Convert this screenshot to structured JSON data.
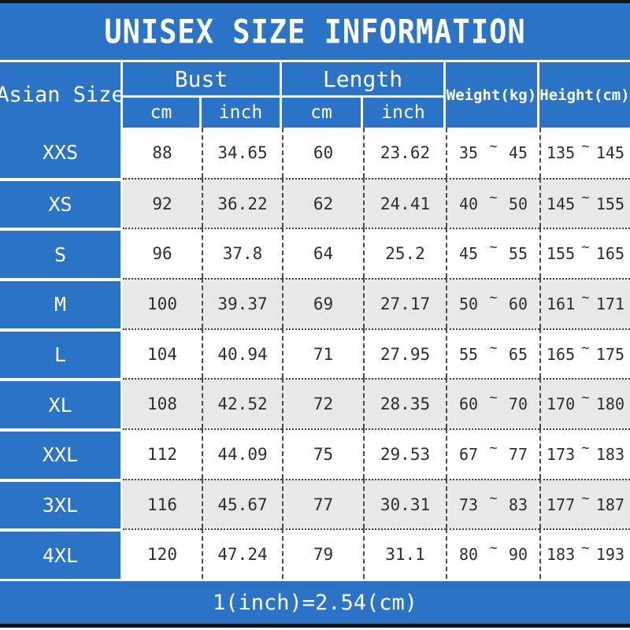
{
  "title": "UNISEX SIZE INFORMATION",
  "symbols": {
    "tilde": "~"
  },
  "colors": {
    "primary_blue": "#2b73c6",
    "alt_row_gray": "#e8e8e8",
    "border_black": "#141414",
    "body_text": "#2e2e2e"
  },
  "header": {
    "asian_size": "Asian Size",
    "bust": "Bust",
    "length": "Length",
    "weight": "Weight(kg)",
    "height": "Height(cm)",
    "unit_cm": "cm",
    "unit_inch": "inch"
  },
  "footer": {
    "note": "1(inch)=2.54(cm)"
  },
  "chart_data": {
    "type": "table",
    "title": "UNISEX SIZE INFORMATION",
    "columns": [
      "Asian Size",
      "Bust cm",
      "Bust inch",
      "Length cm",
      "Length inch",
      "Weight(kg)",
      "Height(cm)"
    ],
    "note": "1(inch)=2.54(cm)",
    "rows": [
      {
        "size": "XXS",
        "bust_cm": "88",
        "bust_inch": "34.65",
        "length_cm": "60",
        "length_inch": "23.62",
        "weight_min": "35",
        "weight_max": "45",
        "height_min": "135",
        "height_max": "145"
      },
      {
        "size": "XS",
        "bust_cm": "92",
        "bust_inch": "36.22",
        "length_cm": "62",
        "length_inch": "24.41",
        "weight_min": "40",
        "weight_max": "50",
        "height_min": "145",
        "height_max": "155"
      },
      {
        "size": "S",
        "bust_cm": "96",
        "bust_inch": "37.8",
        "length_cm": "64",
        "length_inch": "25.2",
        "weight_min": "45",
        "weight_max": "55",
        "height_min": "155",
        "height_max": "165"
      },
      {
        "size": "M",
        "bust_cm": "100",
        "bust_inch": "39.37",
        "length_cm": "69",
        "length_inch": "27.17",
        "weight_min": "50",
        "weight_max": "60",
        "height_min": "161",
        "height_max": "171"
      },
      {
        "size": "L",
        "bust_cm": "104",
        "bust_inch": "40.94",
        "length_cm": "71",
        "length_inch": "27.95",
        "weight_min": "55",
        "weight_max": "65",
        "height_min": "165",
        "height_max": "175"
      },
      {
        "size": "XL",
        "bust_cm": "108",
        "bust_inch": "42.52",
        "length_cm": "72",
        "length_inch": "28.35",
        "weight_min": "60",
        "weight_max": "70",
        "height_min": "170",
        "height_max": "180"
      },
      {
        "size": "XXL",
        "bust_cm": "112",
        "bust_inch": "44.09",
        "length_cm": "75",
        "length_inch": "29.53",
        "weight_min": "67",
        "weight_max": "77",
        "height_min": "173",
        "height_max": "183"
      },
      {
        "size": "3XL",
        "bust_cm": "116",
        "bust_inch": "45.67",
        "length_cm": "77",
        "length_inch": "30.31",
        "weight_min": "73",
        "weight_max": "83",
        "height_min": "177",
        "height_max": "187"
      },
      {
        "size": "4XL",
        "bust_cm": "120",
        "bust_inch": "47.24",
        "length_cm": "79",
        "length_inch": "31.1",
        "weight_min": "80",
        "weight_max": "90",
        "height_min": "183",
        "height_max": "193"
      }
    ]
  }
}
